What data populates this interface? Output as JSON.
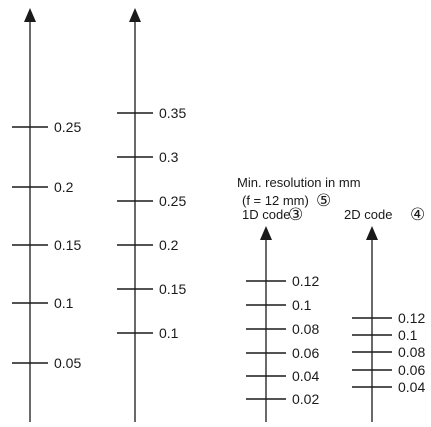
{
  "caption": {
    "line1": "Min. resolution in mm",
    "line2": "(f = 12 mm)",
    "badge": "⑤"
  },
  "scales": [
    {
      "id": "scale-1",
      "header": "",
      "badge": "",
      "ticks": [
        "0.25",
        "0.2",
        "0.15",
        "0.1",
        "0.05"
      ]
    },
    {
      "id": "scale-2",
      "header": "",
      "badge": "",
      "ticks": [
        "0.35",
        "0.3",
        "0.25",
        "0.2",
        "0.15",
        "0.1"
      ]
    },
    {
      "id": "scale-1d",
      "header": "1D code",
      "badge": "③",
      "ticks": [
        "0.12",
        "0.1",
        "0.08",
        "0.06",
        "0.04",
        "0.02"
      ]
    },
    {
      "id": "scale-2d",
      "header": "2D code",
      "badge": "④",
      "ticks": [
        "0.12",
        "0.1",
        "0.08",
        "0.06",
        "0.04"
      ]
    }
  ],
  "colors": {
    "line": "#1a1a1a",
    "background": "#ffffff"
  }
}
